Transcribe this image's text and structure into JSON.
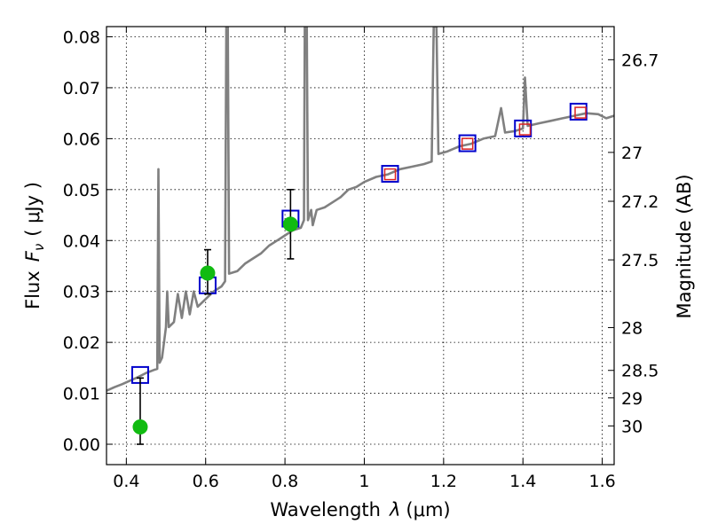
{
  "chart_data": {
    "type": "scatter",
    "xlabel_main": "Wavelength",
    "xlabel_var": "λ",
    "xlabel_unit": "(μm)",
    "ylabel_main": "Flux",
    "ylabel_var": "F",
    "ylabel_sub": "ν",
    "ylabel_unit": "( μJy )",
    "ylabel_right": "Magnitude (AB)",
    "xlim": [
      0.35,
      1.63
    ],
    "ylim": [
      -0.004,
      0.082
    ],
    "x_ticks": [
      0.4,
      0.6,
      0.8,
      1.0,
      1.2,
      1.4,
      1.6
    ],
    "x_tick_labels": [
      "0.4",
      "0.6",
      "0.8",
      "1",
      "1.2",
      "1.4",
      "1.6"
    ],
    "y_ticks": [
      0.0,
      0.01,
      0.02,
      0.03,
      0.04,
      0.05,
      0.06,
      0.07,
      0.08
    ],
    "y_tick_labels": [
      "0.00",
      "0.01",
      "0.02",
      "0.03",
      "0.04",
      "0.05",
      "0.06",
      "0.07",
      "0.08"
    ],
    "mag_ticks": [
      {
        "label": "26.7",
        "flux": 0.0755
      },
      {
        "label": "27",
        "flux": 0.0573
      },
      {
        "label": "27.2",
        "flux": 0.0477
      },
      {
        "label": "27.5",
        "flux": 0.0362
      },
      {
        "label": "28",
        "flux": 0.0229
      },
      {
        "label": "28.5",
        "flux": 0.0145
      },
      {
        "label": "29",
        "flux": 0.0091
      },
      {
        "label": "30",
        "flux": 0.0036
      }
    ],
    "grid": true,
    "series": [
      {
        "name": "model_spectrum",
        "color": "#808080",
        "points": [
          [
            0.35,
            0.0105
          ],
          [
            0.37,
            0.0112
          ],
          [
            0.39,
            0.0118
          ],
          [
            0.41,
            0.0125
          ],
          [
            0.43,
            0.0132
          ],
          [
            0.45,
            0.014
          ],
          [
            0.47,
            0.0146
          ],
          [
            0.478,
            0.0148
          ],
          [
            0.481,
            0.054
          ],
          [
            0.484,
            0.016
          ],
          [
            0.49,
            0.017
          ],
          [
            0.5,
            0.023
          ],
          [
            0.503,
            0.03
          ],
          [
            0.507,
            0.023
          ],
          [
            0.52,
            0.024
          ],
          [
            0.53,
            0.0295
          ],
          [
            0.54,
            0.0248
          ],
          [
            0.55,
            0.03
          ],
          [
            0.56,
            0.0255
          ],
          [
            0.57,
            0.03
          ],
          [
            0.58,
            0.027
          ],
          [
            0.6,
            0.0285
          ],
          [
            0.62,
            0.03
          ],
          [
            0.64,
            0.031
          ],
          [
            0.649,
            0.032
          ],
          [
            0.652,
            0.082
          ],
          [
            0.656,
            0.082
          ],
          [
            0.659,
            0.0335
          ],
          [
            0.68,
            0.034
          ],
          [
            0.7,
            0.0355
          ],
          [
            0.72,
            0.0365
          ],
          [
            0.74,
            0.0375
          ],
          [
            0.76,
            0.039
          ],
          [
            0.78,
            0.04
          ],
          [
            0.8,
            0.041
          ],
          [
            0.82,
            0.042
          ],
          [
            0.84,
            0.0425
          ],
          [
            0.848,
            0.044
          ],
          [
            0.85,
            0.082
          ],
          [
            0.855,
            0.082
          ],
          [
            0.858,
            0.044
          ],
          [
            0.866,
            0.046
          ],
          [
            0.87,
            0.043
          ],
          [
            0.88,
            0.046
          ],
          [
            0.9,
            0.0465
          ],
          [
            0.92,
            0.0475
          ],
          [
            0.94,
            0.0485
          ],
          [
            0.96,
            0.05
          ],
          [
            0.98,
            0.0505
          ],
          [
            1.0,
            0.0515
          ],
          [
            1.03,
            0.0525
          ],
          [
            1.06,
            0.053
          ],
          [
            1.09,
            0.054
          ],
          [
            1.12,
            0.0545
          ],
          [
            1.15,
            0.055
          ],
          [
            1.17,
            0.0555
          ],
          [
            1.175,
            0.082
          ],
          [
            1.182,
            0.082
          ],
          [
            1.187,
            0.057
          ],
          [
            1.21,
            0.0575
          ],
          [
            1.24,
            0.0585
          ],
          [
            1.27,
            0.059
          ],
          [
            1.3,
            0.06
          ],
          [
            1.33,
            0.0605
          ],
          [
            1.345,
            0.066
          ],
          [
            1.355,
            0.0612
          ],
          [
            1.38,
            0.0615
          ],
          [
            1.4,
            0.062
          ],
          [
            1.405,
            0.072
          ],
          [
            1.412,
            0.0625
          ],
          [
            1.44,
            0.063
          ],
          [
            1.47,
            0.0635
          ],
          [
            1.5,
            0.064
          ],
          [
            1.53,
            0.0645
          ],
          [
            1.56,
            0.065
          ],
          [
            1.59,
            0.0648
          ],
          [
            1.61,
            0.064
          ],
          [
            1.63,
            0.0645
          ]
        ]
      },
      {
        "name": "model_photometry",
        "marker": "open-square",
        "color": "#0000cc",
        "points": [
          [
            0.435,
            0.0136
          ],
          [
            0.605,
            0.0312
          ],
          [
            0.814,
            0.0443
          ],
          [
            1.065,
            0.0531
          ],
          [
            1.26,
            0.0591
          ],
          [
            1.4,
            0.062
          ],
          [
            1.54,
            0.0653
          ]
        ]
      },
      {
        "name": "synthetic_photometry",
        "marker": "open-square",
        "color": "#dd2222",
        "points": [
          [
            1.065,
            0.053
          ],
          [
            1.26,
            0.059
          ],
          [
            1.405,
            0.0618
          ],
          [
            1.545,
            0.0651
          ]
        ]
      },
      {
        "name": "observed_flux",
        "marker": "filled-circle",
        "color": "#11bb11",
        "points": [
          {
            "x": 0.435,
            "y": 0.0034,
            "yerr_low": 0.0034,
            "yerr_high": 0.0096
          },
          {
            "x": 0.605,
            "y": 0.0336,
            "yerr_low": 0.0041,
            "yerr_high": 0.0046
          },
          {
            "x": 0.814,
            "y": 0.0432,
            "yerr_low": 0.0068,
            "yerr_high": 0.0068
          }
        ]
      }
    ]
  }
}
